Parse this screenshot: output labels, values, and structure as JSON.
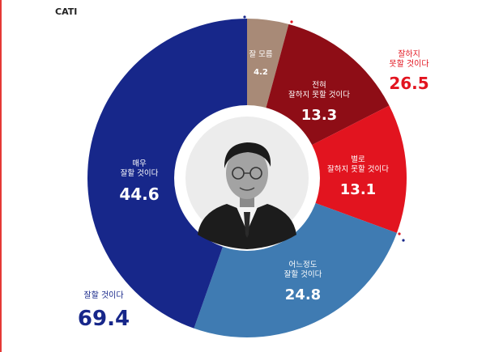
{
  "method_label": "CATI",
  "chart_data": {
    "type": "pie",
    "style": "donut",
    "slices": [
      {
        "label": "잘 모름",
        "value": 4.2,
        "color": "#a88a77"
      },
      {
        "label": "전혀\n잘하지 못할 것이다",
        "value": 13.3,
        "color": "#8e0d16"
      },
      {
        "label": "별로\n잘하지 못할 것이다",
        "value": 13.1,
        "color": "#e2141f"
      },
      {
        "label": "어느정도\n잘할 것이다",
        "value": 24.8,
        "color": "#3f7bb2"
      },
      {
        "label": "매우\n잘할 것이다",
        "value": 44.6,
        "color": "#17278a"
      }
    ],
    "groups": [
      {
        "label": "잘하지\n못할 것이다",
        "value": 26.5,
        "color": "#e2141f"
      },
      {
        "label": "잘할 것이다",
        "value": 69.4,
        "color": "#17278a"
      }
    ]
  }
}
